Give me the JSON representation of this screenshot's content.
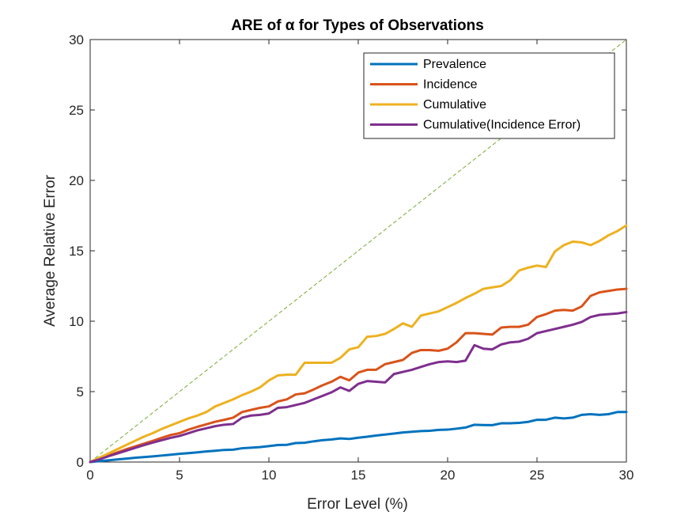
{
  "chart_data": {
    "type": "line",
    "title": "ARE of α for Types of Observations",
    "xlabel": "Error Level (%)",
    "ylabel": "Average Relative Error",
    "xlim": [
      0,
      30
    ],
    "ylim": [
      0,
      30
    ],
    "xticks": [
      0,
      5,
      10,
      15,
      20,
      25,
      30
    ],
    "yticks": [
      0,
      5,
      10,
      15,
      20,
      25,
      30
    ],
    "grid": false,
    "legend_position": "top-right",
    "x": [
      0,
      0.5,
      1,
      1.5,
      2,
      2.5,
      3,
      3.5,
      4,
      4.5,
      5,
      5.5,
      6,
      6.5,
      7,
      7.5,
      8,
      8.5,
      9,
      9.5,
      10,
      10.5,
      11,
      11.5,
      12,
      12.5,
      13,
      13.5,
      14,
      14.5,
      15,
      15.5,
      16,
      16.5,
      17,
      17.5,
      18,
      18.5,
      19,
      19.5,
      20,
      20.5,
      21,
      21.5,
      22,
      22.5,
      23,
      23.5,
      24,
      24.5,
      25,
      25.5,
      26,
      26.5,
      27,
      27.5,
      28,
      28.5,
      29,
      29.5,
      30
    ],
    "series": [
      {
        "name": "Prevalence",
        "color": "#0072BD",
        "values": [
          0,
          0.06,
          0.12,
          0.18,
          0.24,
          0.3,
          0.35,
          0.4,
          0.46,
          0.52,
          0.58,
          0.63,
          0.69,
          0.75,
          0.8,
          0.86,
          0.88,
          0.98,
          1.02,
          1.06,
          1.13,
          1.21,
          1.22,
          1.35,
          1.37,
          1.47,
          1.55,
          1.6,
          1.68,
          1.64,
          1.73,
          1.8,
          1.88,
          1.95,
          2.02,
          2.1,
          2.15,
          2.2,
          2.22,
          2.28,
          2.3,
          2.37,
          2.45,
          2.65,
          2.63,
          2.62,
          2.75,
          2.75,
          2.78,
          2.85,
          3.0,
          3.0,
          3.15,
          3.1,
          3.15,
          3.35,
          3.4,
          3.35,
          3.4,
          3.55,
          3.55
        ]
      },
      {
        "name": "Incidence",
        "color": "#D95319",
        "values": [
          0,
          0.2,
          0.45,
          0.68,
          0.9,
          1.1,
          1.3,
          1.5,
          1.72,
          1.92,
          2.05,
          2.3,
          2.5,
          2.68,
          2.86,
          3.0,
          3.15,
          3.55,
          3.7,
          3.85,
          3.95,
          4.3,
          4.45,
          4.8,
          4.88,
          5.15,
          5.45,
          5.7,
          6.05,
          5.8,
          6.35,
          6.55,
          6.55,
          6.95,
          7.1,
          7.25,
          7.75,
          7.95,
          7.95,
          7.9,
          8.05,
          8.5,
          9.15,
          9.15,
          9.1,
          9.05,
          9.55,
          9.6,
          9.6,
          9.75,
          10.3,
          10.5,
          10.75,
          10.8,
          10.75,
          11.05,
          11.8,
          12.05,
          12.15,
          12.25,
          12.3
        ]
      },
      {
        "name": "Cumulative",
        "color": "#EDB120",
        "values": [
          0,
          0.3,
          0.6,
          0.9,
          1.2,
          1.5,
          1.8,
          2.05,
          2.35,
          2.6,
          2.85,
          3.1,
          3.3,
          3.55,
          3.95,
          4.2,
          4.45,
          4.75,
          5.0,
          5.3,
          5.8,
          6.15,
          6.2,
          6.2,
          7.05,
          7.05,
          7.05,
          7.05,
          7.4,
          8.0,
          8.15,
          8.9,
          8.95,
          9.1,
          9.45,
          9.85,
          9.6,
          10.4,
          10.55,
          10.7,
          11.0,
          11.3,
          11.65,
          11.95,
          12.3,
          12.4,
          12.5,
          12.9,
          13.6,
          13.8,
          13.95,
          13.85,
          14.95,
          15.4,
          15.65,
          15.6,
          15.4,
          15.7,
          16.1,
          16.4,
          16.8
        ]
      },
      {
        "name": "Cumulative(Incidence Error)",
        "color": "#7E2F8E",
        "values": [
          0,
          0.18,
          0.4,
          0.6,
          0.8,
          1.0,
          1.2,
          1.38,
          1.55,
          1.72,
          1.85,
          2.05,
          2.25,
          2.4,
          2.55,
          2.65,
          2.7,
          3.15,
          3.3,
          3.35,
          3.45,
          3.85,
          3.9,
          4.05,
          4.2,
          4.45,
          4.7,
          4.95,
          5.3,
          5.05,
          5.55,
          5.75,
          5.7,
          5.65,
          6.25,
          6.4,
          6.55,
          6.75,
          6.95,
          7.1,
          7.15,
          7.1,
          7.2,
          8.3,
          8.05,
          8.0,
          8.35,
          8.5,
          8.55,
          8.75,
          9.15,
          9.3,
          9.45,
          9.6,
          9.75,
          9.95,
          10.3,
          10.45,
          10.5,
          10.55,
          10.65
        ]
      }
    ],
    "reference_line": {
      "style": "dashed",
      "color": "#77AC30",
      "values": [
        0,
        30
      ]
    }
  }
}
